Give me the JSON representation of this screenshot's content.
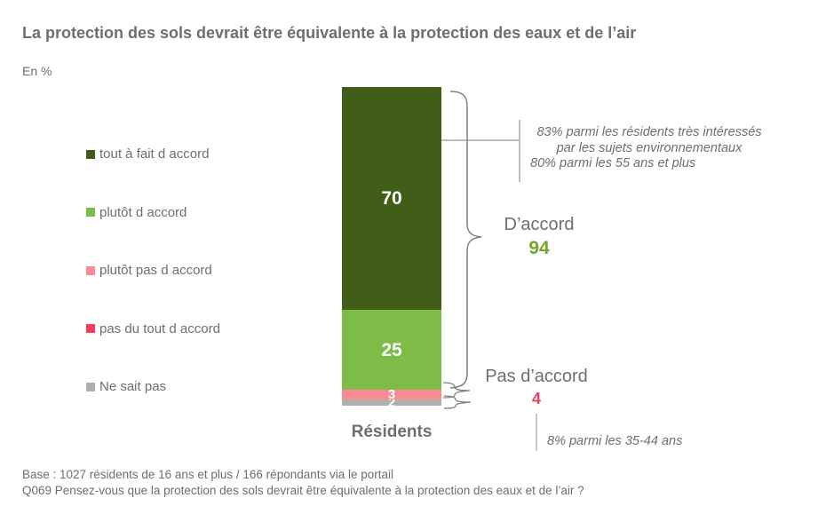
{
  "title": "La protection des sols devrait être équivalente à la protection des eaux et de l’air",
  "units_label": "En %",
  "legend": {
    "items": [
      {
        "label": "tout à fait d accord",
        "color": "#415e19"
      },
      {
        "label": "plutôt d accord",
        "color": "#7ebb47"
      },
      {
        "label": "plutôt pas d accord",
        "color": "#fa8a93"
      },
      {
        "label": "pas du tout d accord",
        "color": "#f8395c"
      },
      {
        "label": "Ne sait pas",
        "color": "#afafaf"
      }
    ]
  },
  "chart_data": {
    "type": "bar",
    "subtype": "stacked-column-100",
    "categories": [
      "Résidents"
    ],
    "series": [
      {
        "name": "tout à fait d accord",
        "color": "#415e19",
        "values": [
          70
        ]
      },
      {
        "name": "plutôt d accord",
        "color": "#7ebb47",
        "values": [
          25
        ]
      },
      {
        "name": "plutôt pas d accord",
        "color": "#fa8a93",
        "values": [
          3
        ]
      },
      {
        "name": "Ne sait pas",
        "color": "#afafaf",
        "values": [
          2
        ]
      }
    ],
    "title": "La protection des sols devrait être équivalente à la protection des eaux et de l’air",
    "ylabel": "En %",
    "ylim": [
      0,
      100
    ],
    "grid": false,
    "legend_position": "left",
    "aggregates": [
      {
        "label": "D’accord",
        "value": "94",
        "color": "#76a22e"
      },
      {
        "label": "Pas d’accord",
        "value": "4",
        "color": "#ee3b5f"
      }
    ],
    "annotations": {
      "top_line1": "83% parmi les résidents très intéressés",
      "top_line2": "par les sujets environnementaux",
      "top_line3": "80% parmi les 55 ans et plus",
      "bottom_line": "8% parmi les 35-44 ans"
    }
  },
  "category_label": "Résidents",
  "footer": {
    "base": "Base : 1027 résidents de 16 ans et plus / 166 répondants via le portail",
    "question": "Q069 Pensez-vous que la protection des sols devrait être équivalente à la protection des eaux et de l’air ?"
  }
}
